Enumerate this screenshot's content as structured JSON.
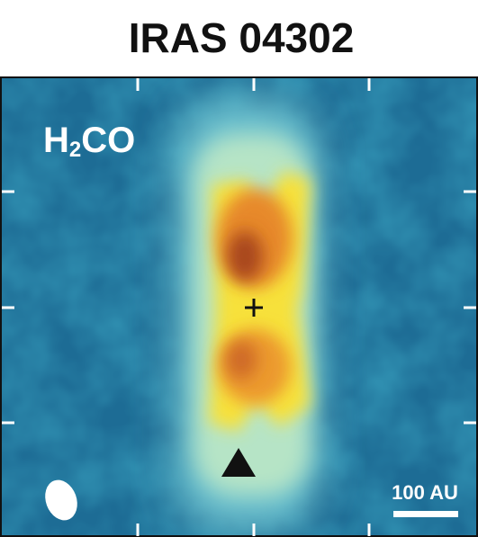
{
  "title": "IRAS 04302",
  "molecule": {
    "parts": [
      "H",
      "2",
      "CO"
    ]
  },
  "scale_bar": "100 AU"
}
